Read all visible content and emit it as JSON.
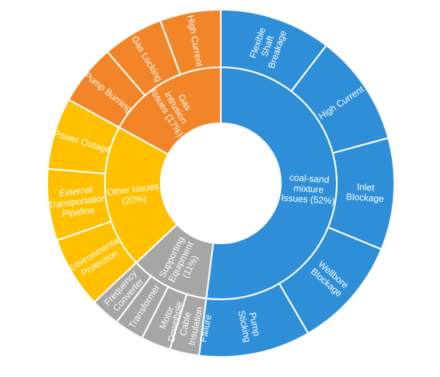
{
  "chart_data": {
    "type": "sunburst",
    "title": "",
    "hole": true,
    "inner_ring": [
      {
        "label": "coal-sand mixture Issues (52%)",
        "value": 52,
        "color": "#2e8fd8"
      },
      {
        "label": "Supporting Equipment (11%)",
        "value": 11,
        "color": "#a6a6a6"
      },
      {
        "label": "Other Issues (20%)",
        "value": 20,
        "color": "#ffc000"
      },
      {
        "label": "Gas Intrusion Issues (17%)",
        "value": 17,
        "color": "#f28528"
      }
    ],
    "outer_ring": [
      {
        "label": "Flexible Shaft Breakage",
        "parent": 0,
        "share": 1
      },
      {
        "label": "High Current",
        "parent": 0,
        "share": 1
      },
      {
        "label": "Inlet Blockage",
        "parent": 0,
        "share": 1
      },
      {
        "label": "Wellbore Blockage",
        "parent": 0,
        "share": 1
      },
      {
        "label": "Pump Sticking",
        "parent": 0,
        "share": 1
      },
      {
        "label": "Downhole Cable Insulation Failure",
        "parent": 1,
        "share": 1
      },
      {
        "label": "Motor",
        "parent": 1,
        "share": 1
      },
      {
        "label": "Transformer",
        "parent": 1,
        "share": 1
      },
      {
        "label": "Frequency Converter",
        "parent": 1,
        "share": 1
      },
      {
        "label": "Environmental Protection",
        "parent": 2,
        "share": 1
      },
      {
        "label": "External Transportation Pipeline",
        "parent": 2,
        "share": 1
      },
      {
        "label": "Power Outage",
        "parent": 2,
        "share": 1
      },
      {
        "label": "Pump Burning",
        "parent": 3,
        "share": 1
      },
      {
        "label": "Gas Locking",
        "parent": 3,
        "share": 1
      },
      {
        "label": "High Current",
        "parent": 3,
        "share": 1
      }
    ]
  }
}
